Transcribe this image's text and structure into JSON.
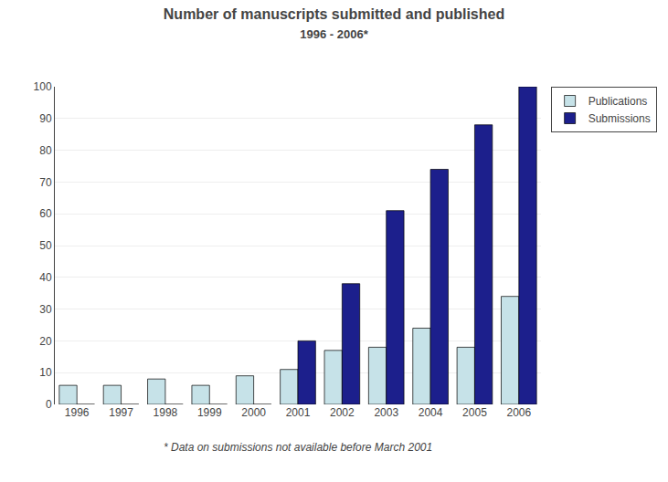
{
  "chart_data": {
    "type": "bar",
    "title": "Number of manuscripts submitted and published",
    "subtitle": "1996 - 2006*",
    "footnote": "* Data on submissions not available before March 2001",
    "categories": [
      "1996",
      "1997",
      "1998",
      "1999",
      "2000",
      "2001",
      "2002",
      "2003",
      "2004",
      "2005",
      "2006"
    ],
    "series": [
      {
        "name": "Publications",
        "color": "#c6e2e8",
        "values": [
          6,
          6,
          8,
          6,
          9,
          11,
          17,
          18,
          24,
          18,
          34
        ]
      },
      {
        "name": "Submissions",
        "color": "#1c1f8c",
        "values": [
          0,
          0,
          0,
          0,
          0,
          20,
          38,
          61,
          74,
          88,
          100
        ]
      }
    ],
    "ylim": [
      0,
      100
    ],
    "yticks": [
      0,
      10,
      20,
      30,
      40,
      50,
      60,
      70,
      80,
      90,
      100
    ],
    "grid": true,
    "legend": "right"
  }
}
